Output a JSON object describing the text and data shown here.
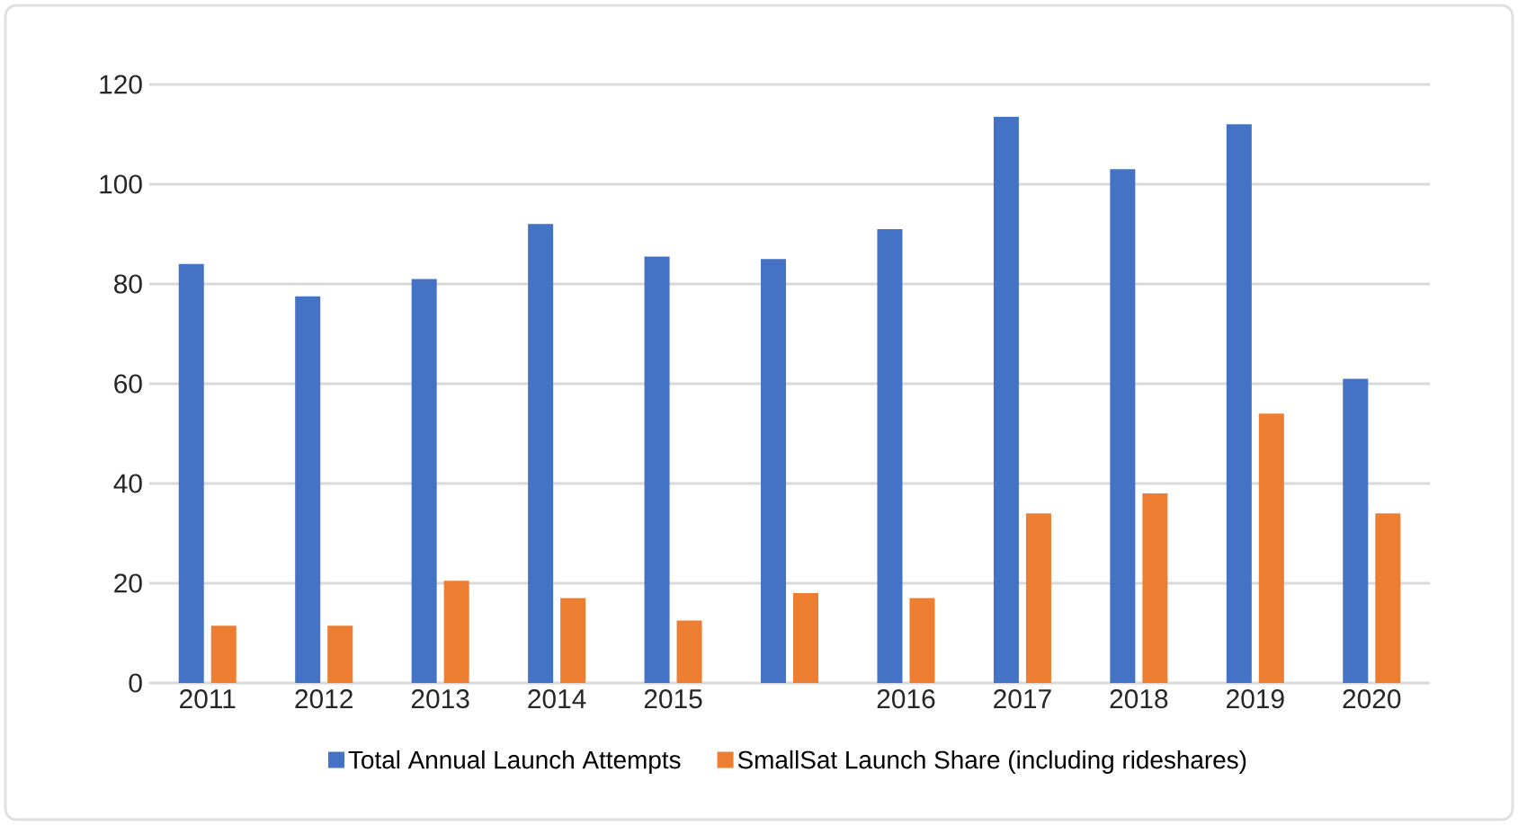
{
  "chart_data": {
    "type": "bar",
    "categories": [
      "2011",
      "2012",
      "2013",
      "2014",
      "2015",
      null,
      "2016",
      "2017",
      "2018",
      "2019",
      "2020"
    ],
    "series": [
      {
        "name": "Total Annual Launch Attempts",
        "color": "#4472c4",
        "values": [
          84,
          77.5,
          81,
          92,
          85.5,
          85,
          91,
          113.5,
          103,
          112,
          61
        ]
      },
      {
        "name": "SmallSat Launch Share (including rideshares)",
        "color": "#ed7d31",
        "values": [
          11.5,
          11.5,
          20.5,
          17,
          12.5,
          18,
          17,
          34,
          38,
          54,
          34
        ]
      }
    ],
    "ylim": [
      0,
      120
    ],
    "yticks": [
      0,
      20,
      40,
      60,
      80,
      100,
      120
    ],
    "grid": "y",
    "legend": "bottom"
  }
}
